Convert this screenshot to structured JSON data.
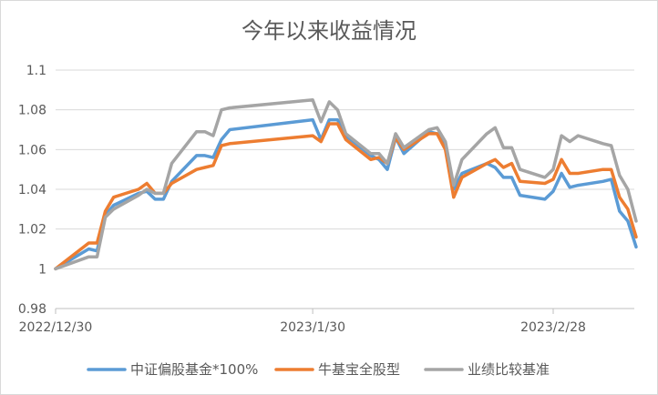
{
  "chart_data": {
    "type": "line",
    "title": "今年以来收益情况",
    "xlabel": "",
    "ylabel": "",
    "ylim": [
      0.98,
      1.1
    ],
    "yticks": [
      "0.98",
      "1",
      "1.02",
      "1.04",
      "1.06",
      "1.08",
      "1.1"
    ],
    "grid": true,
    "legend_position": "bottom",
    "x_start": "2022/12/30",
    "x_tick_labels": [
      {
        "label": "2022/12/30",
        "date": "2022-12-30"
      },
      {
        "label": "2023/1/30",
        "date": "2023-01-30"
      },
      {
        "label": "2023/2/28",
        "date": "2023-02-28"
      }
    ],
    "x": [
      "2022-12-30",
      "2023-01-03",
      "2023-01-04",
      "2023-01-05",
      "2023-01-06",
      "2023-01-09",
      "2023-01-10",
      "2023-01-11",
      "2023-01-12",
      "2023-01-13",
      "2023-01-16",
      "2023-01-17",
      "2023-01-18",
      "2023-01-19",
      "2023-01-20",
      "2023-01-30",
      "2023-01-31",
      "2023-02-01",
      "2023-02-02",
      "2023-02-03",
      "2023-02-06",
      "2023-02-07",
      "2023-02-08",
      "2023-02-09",
      "2023-02-10",
      "2023-02-13",
      "2023-02-14",
      "2023-02-15",
      "2023-02-16",
      "2023-02-17",
      "2023-02-20",
      "2023-02-21",
      "2023-02-22",
      "2023-02-23",
      "2023-02-24",
      "2023-02-27",
      "2023-02-28",
      "2023-03-01",
      "2023-03-02",
      "2023-03-03",
      "2023-03-06",
      "2023-03-07",
      "2023-03-08",
      "2023-03-09",
      "2023-03-10"
    ],
    "series": [
      {
        "name": "中证偏股基金*100%",
        "color": "#5b9bd5",
        "values": [
          1.0,
          1.01,
          1.009,
          1.027,
          1.032,
          1.038,
          1.039,
          1.035,
          1.035,
          1.044,
          1.057,
          1.057,
          1.056,
          1.065,
          1.07,
          1.075,
          1.065,
          1.075,
          1.075,
          1.067,
          1.057,
          1.055,
          1.05,
          1.066,
          1.058,
          1.069,
          1.068,
          1.062,
          1.04,
          1.048,
          1.053,
          1.051,
          1.046,
          1.046,
          1.037,
          1.035,
          1.039,
          1.048,
          1.041,
          1.042,
          1.044,
          1.045,
          1.029,
          1.024,
          1.011
        ]
      },
      {
        "name": "牛基宝全股型",
        "color": "#ed7d31",
        "values": [
          1.0,
          1.013,
          1.013,
          1.029,
          1.036,
          1.04,
          1.043,
          1.038,
          1.038,
          1.043,
          1.05,
          1.051,
          1.052,
          1.062,
          1.063,
          1.067,
          1.064,
          1.073,
          1.073,
          1.065,
          1.055,
          1.056,
          1.053,
          1.066,
          1.06,
          1.068,
          1.068,
          1.06,
          1.036,
          1.046,
          1.053,
          1.055,
          1.051,
          1.053,
          1.044,
          1.043,
          1.045,
          1.055,
          1.048,
          1.048,
          1.05,
          1.05,
          1.036,
          1.03,
          1.016
        ]
      },
      {
        "name": "业绩比较基准",
        "color": "#a5a5a5",
        "values": [
          1.0,
          1.006,
          1.006,
          1.026,
          1.03,
          1.037,
          1.04,
          1.038,
          1.038,
          1.053,
          1.069,
          1.069,
          1.067,
          1.08,
          1.081,
          1.085,
          1.074,
          1.084,
          1.08,
          1.068,
          1.058,
          1.058,
          1.053,
          1.068,
          1.061,
          1.07,
          1.071,
          1.064,
          1.042,
          1.055,
          1.068,
          1.071,
          1.061,
          1.061,
          1.05,
          1.046,
          1.05,
          1.067,
          1.064,
          1.067,
          1.063,
          1.062,
          1.047,
          1.04,
          1.024
        ]
      }
    ]
  }
}
